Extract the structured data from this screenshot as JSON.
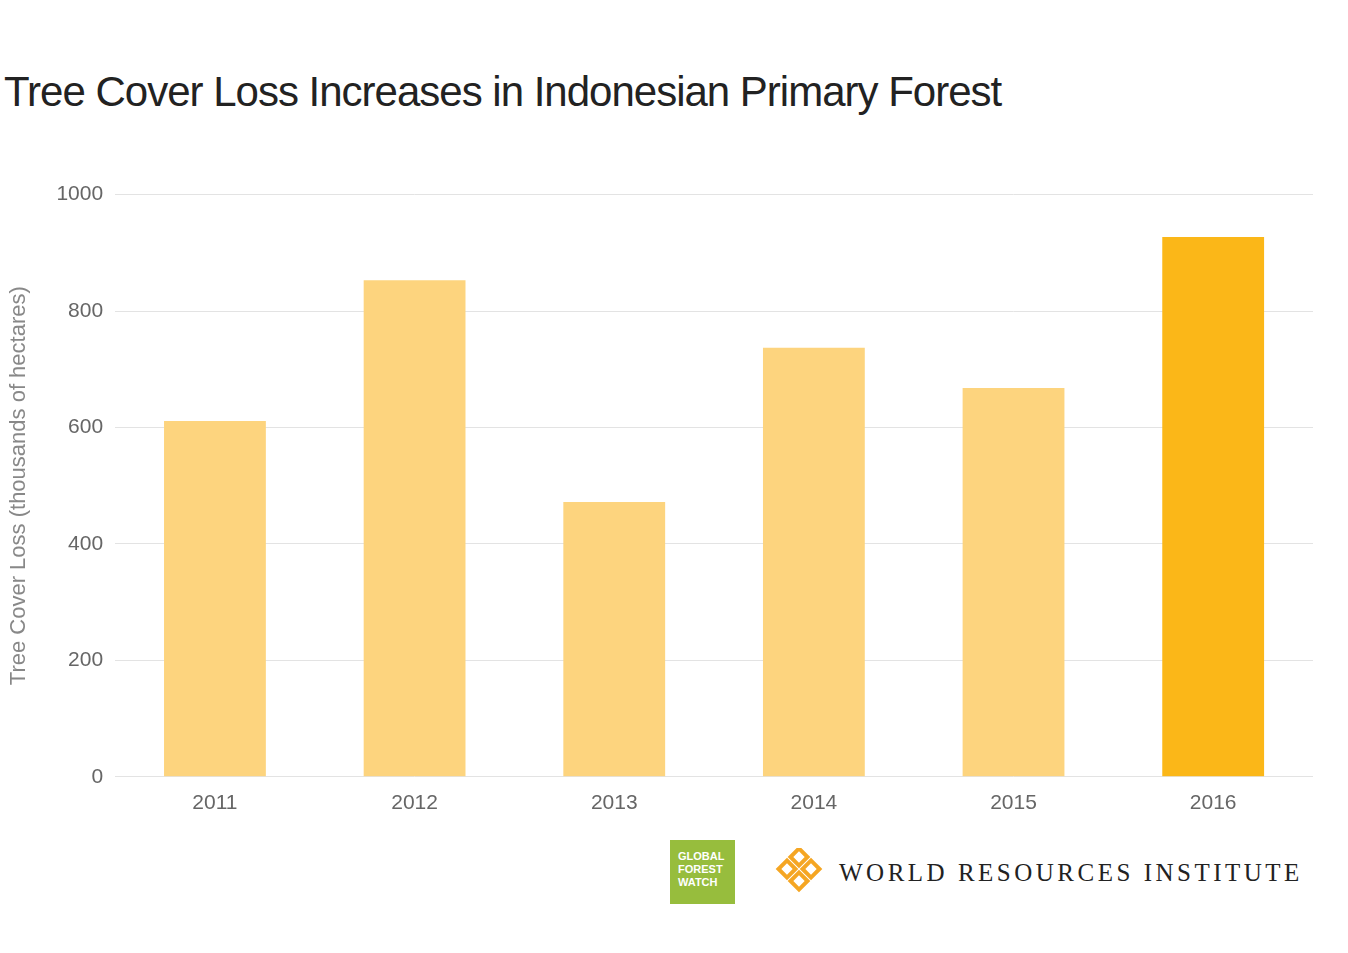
{
  "chart_data": {
    "type": "bar",
    "title": "Tree Cover Loss Increases in Indonesian Primary Forest",
    "y_label": "Tree Cover Loss (thousands of hectares)",
    "categories": [
      "2011",
      "2012",
      "2013",
      "2014",
      "2015",
      "2016"
    ],
    "values": [
      611,
      853,
      472,
      737,
      668,
      927
    ],
    "colors": [
      "#fdd47e",
      "#fdd47e",
      "#fdd47e",
      "#fdd47e",
      "#fdd47e",
      "#fbb718"
    ],
    "ylim": [
      0,
      1000
    ],
    "yticks": [
      0,
      200,
      400,
      600,
      800,
      1000
    ],
    "grid": true,
    "annotations": [
      "GLOBAL FOREST WATCH",
      "WORLD RESOURCES INSTITUTE"
    ]
  }
}
